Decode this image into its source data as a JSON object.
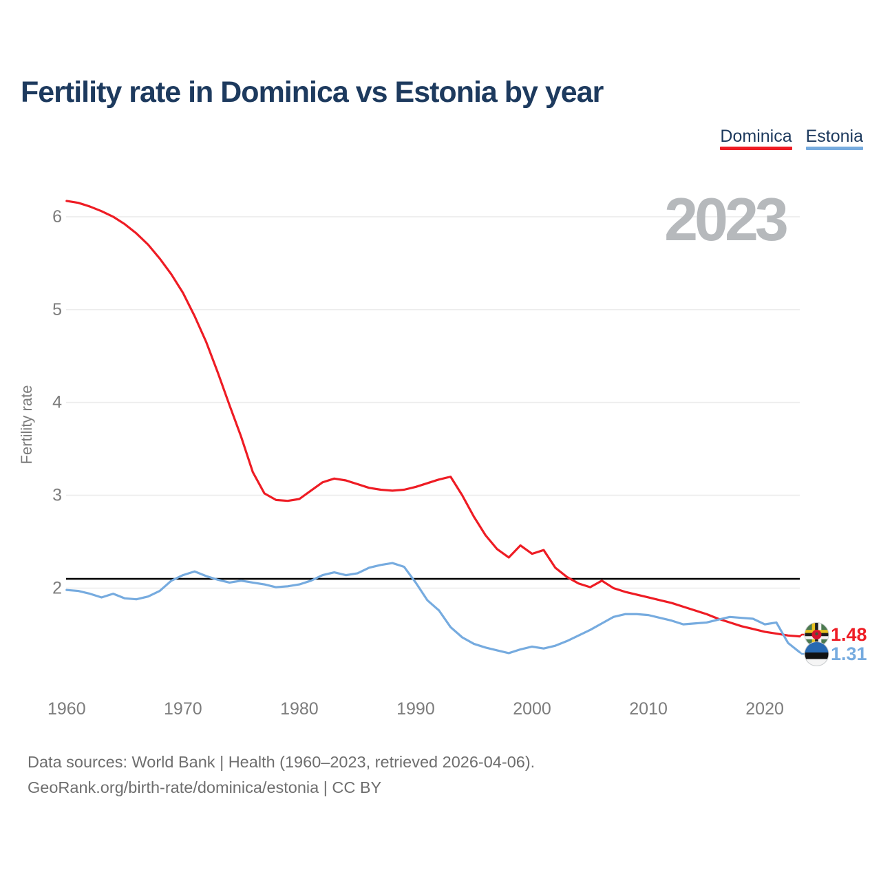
{
  "title": "Fertility rate in Dominica vs Estonia by year",
  "watermark": "2023",
  "legend": [
    {
      "label": "Dominica",
      "color": "#ee1c24"
    },
    {
      "label": "Estonia",
      "color": "#76abdf"
    }
  ],
  "colors": {
    "dominica_red": "#ee1c24",
    "estonia_blue": "#76abdf",
    "title_navy": "#1d3a5e",
    "axis_gray": "#7c7c7c",
    "watermark_gray": "#b6b9bc",
    "gridline_gray": "#ececec",
    "reference_black": "#000000",
    "footer_gray": "#6e6e6e"
  },
  "end_labels": [
    {
      "series": "Dominica",
      "value": "1.48",
      "flag_icon": "dominica-flag-icon",
      "color": "#ee1c24"
    },
    {
      "series": "Estonia",
      "value": "1.31",
      "flag_icon": "estonia-flag-icon",
      "color": "#76abdf"
    }
  ],
  "footer": {
    "line1": "Data sources: World Bank | Health (1960–2023, retrieved 2026-04-06).",
    "line2": "GeoRank.org/birth-rate/dominica/estonia | CC BY"
  },
  "chart_data": {
    "type": "line",
    "title": "Fertility rate in Dominica vs Estonia by year",
    "xlabel": "",
    "ylabel": "Fertility rate",
    "xlim": [
      1960,
      2023
    ],
    "ylim": [
      1.25,
      6.3
    ],
    "grid": "horizontal-only",
    "legend_position": "top-right",
    "y_ticks": [
      6,
      5,
      4,
      3,
      2
    ],
    "x_ticks": [
      1960,
      1970,
      1980,
      1990,
      2000,
      2010,
      2020
    ],
    "reference_line": {
      "value": 2.1,
      "color": "#000000",
      "meaning": "replacement-level fertility"
    },
    "x": [
      1960,
      1961,
      1962,
      1963,
      1964,
      1965,
      1966,
      1967,
      1968,
      1969,
      1970,
      1971,
      1972,
      1973,
      1974,
      1975,
      1976,
      1977,
      1978,
      1979,
      1980,
      1981,
      1982,
      1983,
      1984,
      1985,
      1986,
      1987,
      1988,
      1989,
      1990,
      1991,
      1992,
      1993,
      1994,
      1995,
      1996,
      1997,
      1998,
      1999,
      2000,
      2001,
      2002,
      2003,
      2004,
      2005,
      2006,
      2007,
      2008,
      2009,
      2010,
      2011,
      2012,
      2013,
      2014,
      2015,
      2016,
      2017,
      2018,
      2019,
      2020,
      2021,
      2022,
      2023
    ],
    "series": [
      {
        "name": "Dominica",
        "color": "#ee1c24",
        "values": [
          6.17,
          6.15,
          6.11,
          6.06,
          6.0,
          5.92,
          5.82,
          5.7,
          5.55,
          5.38,
          5.18,
          4.93,
          4.65,
          4.32,
          3.97,
          3.63,
          3.25,
          3.02,
          2.95,
          2.94,
          2.96,
          3.05,
          3.14,
          3.18,
          3.16,
          3.12,
          3.08,
          3.06,
          3.05,
          3.06,
          3.09,
          3.13,
          3.17,
          3.2,
          3.0,
          2.77,
          2.57,
          2.42,
          2.33,
          2.46,
          2.37,
          2.41,
          2.22,
          2.12,
          2.05,
          2.01,
          2.08,
          2.0,
          1.96,
          1.93,
          1.9,
          1.87,
          1.84,
          1.8,
          1.76,
          1.72,
          1.67,
          1.63,
          1.59,
          1.56,
          1.53,
          1.51,
          1.49,
          1.48
        ]
      },
      {
        "name": "Estonia",
        "color": "#76abdf",
        "values": [
          1.98,
          1.97,
          1.94,
          1.9,
          1.94,
          1.89,
          1.88,
          1.91,
          1.97,
          2.08,
          2.14,
          2.18,
          2.13,
          2.09,
          2.06,
          2.08,
          2.06,
          2.04,
          2.01,
          2.02,
          2.04,
          2.08,
          2.14,
          2.17,
          2.14,
          2.16,
          2.22,
          2.25,
          2.27,
          2.23,
          2.06,
          1.87,
          1.76,
          1.58,
          1.47,
          1.4,
          1.36,
          1.33,
          1.3,
          1.34,
          1.37,
          1.35,
          1.38,
          1.43,
          1.49,
          1.55,
          1.62,
          1.69,
          1.72,
          1.72,
          1.71,
          1.68,
          1.65,
          1.61,
          1.62,
          1.63,
          1.66,
          1.69,
          1.68,
          1.67,
          1.61,
          1.63,
          1.41,
          1.31
        ]
      }
    ]
  }
}
